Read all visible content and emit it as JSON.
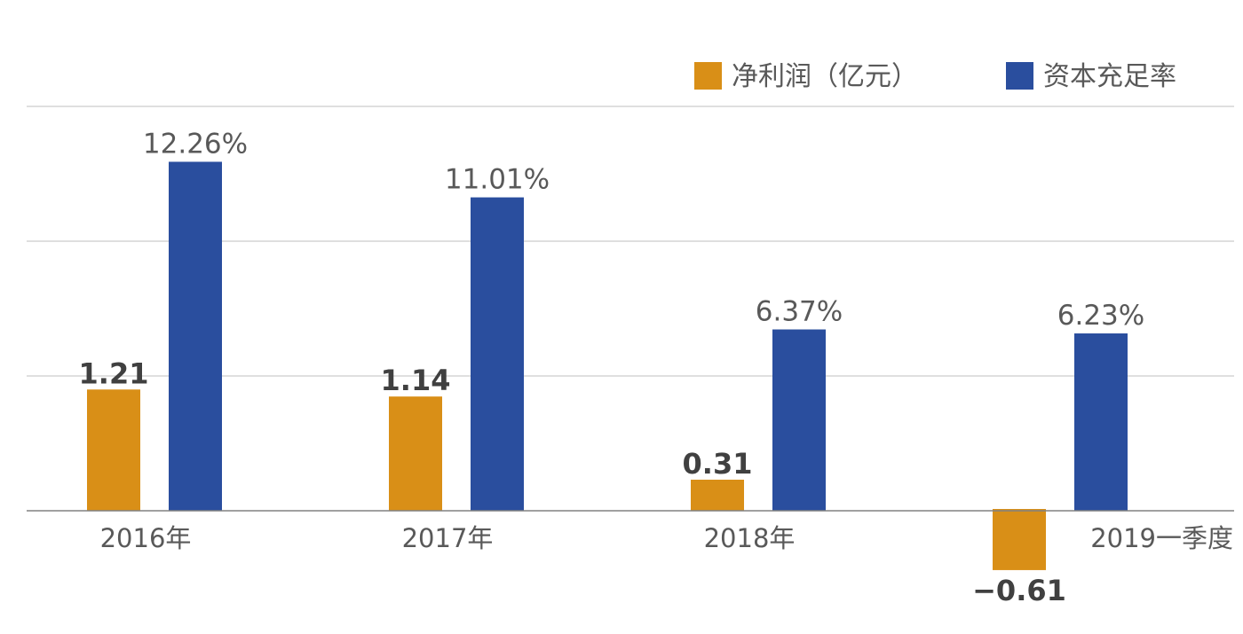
{
  "colors": {
    "profit": "#D98F17",
    "ratio": "#2A4E9E",
    "grid": "#BFBFBF",
    "axis": "#808080"
  },
  "chart_data": {
    "type": "bar",
    "categories": [
      "2016年",
      "2017年",
      "2018年",
      "2019一季度"
    ],
    "series": [
      {
        "name": "净利润（亿元）",
        "values": [
          1.21,
          1.14,
          0.31,
          -0.61
        ],
        "labels": [
          "1.21",
          "1.14",
          "0.31",
          "−0.61"
        ]
      },
      {
        "name": "资本充足率",
        "values": [
          12.26,
          11.01,
          6.37,
          6.23
        ],
        "labels": [
          "12.26%",
          "11.01%",
          "6.37%",
          "6.23%"
        ]
      }
    ],
    "legend_position": "top-right",
    "grid": true
  }
}
